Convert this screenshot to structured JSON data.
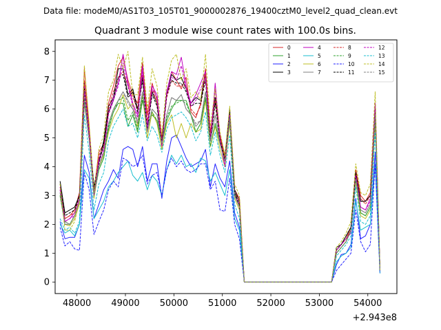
{
  "chart_data": {
    "type": "line",
    "suptitle": "Data file: modeM0/AS1T03_105T01_9000002876_19400cztM0_level2_quad_clean.evt",
    "title": "Quadrant 3 module wise count rates with 100.0s bins.",
    "xlabel": "",
    "ylabel": "",
    "x_offset_label": "+2.943e8",
    "xlim": [
      47550,
      54600
    ],
    "ylim": [
      -0.4,
      8.4
    ],
    "xticks": [
      48000,
      49000,
      50000,
      51000,
      52000,
      53000,
      54000
    ],
    "yticks": [
      0,
      1,
      2,
      3,
      4,
      5,
      6,
      7,
      8
    ],
    "legend_position": "top-right",
    "legend_columns": 4,
    "x": [
      47652,
      47752,
      47852,
      47952,
      48052,
      48152,
      48252,
      48352,
      48452,
      48552,
      48652,
      48752,
      48852,
      48952,
      49052,
      49152,
      49252,
      49352,
      49452,
      49552,
      49652,
      49752,
      49852,
      49952,
      50052,
      50152,
      50252,
      50352,
      50452,
      50552,
      50652,
      50752,
      50852,
      50952,
      51052,
      51152,
      51252,
      51352,
      51452,
      51552,
      51652,
      51752,
      51852,
      51952,
      52052,
      52152,
      52252,
      52352,
      52452,
      52552,
      52652,
      52752,
      52852,
      52952,
      53052,
      53152,
      53252,
      53352,
      53452,
      53552,
      53652,
      53752,
      53852,
      53952,
      54052,
      54152,
      54252
    ],
    "series": [
      {
        "name": "0",
        "color": "#d62728",
        "dash": "solid",
        "values": [
          3.3,
          2.2,
          2.3,
          2.5,
          3.1,
          7.4,
          5.4,
          3.2,
          4.5,
          4.8,
          6.2,
          6.8,
          7.5,
          7.8,
          7.0,
          6.5,
          6.2,
          7.6,
          5.8,
          6.9,
          6.3,
          5.0,
          6.5,
          7.3,
          7.0,
          6.7,
          7.1,
          5.9,
          5.7,
          6.2,
          7.4,
          5.2,
          6.4,
          5.1,
          4.4,
          5.9,
          3.2,
          2.9,
          0.0,
          0.0,
          0.0,
          0.0,
          0.0,
          0.0,
          0.0,
          0.0,
          0.0,
          0.0,
          0.0,
          0.0,
          0.0,
          0.0,
          0.0,
          0.0,
          0.0,
          0.0,
          0.0,
          1.1,
          1.3,
          1.5,
          1.9,
          3.9,
          3.0,
          2.8,
          3.1,
          6.1,
          0.4
        ]
      },
      {
        "name": "1",
        "color": "#2ca02c",
        "dash": "solid",
        "values": [
          3.0,
          2.1,
          2.0,
          2.3,
          2.8,
          6.2,
          5.1,
          3.0,
          3.9,
          4.3,
          5.3,
          5.9,
          6.2,
          6.2,
          5.4,
          5.8,
          5.2,
          6.3,
          5.5,
          5.8,
          5.6,
          4.8,
          5.6,
          6.0,
          6.3,
          6.3,
          6.3,
          5.8,
          5.2,
          5.5,
          6.4,
          4.7,
          5.5,
          4.8,
          4.2,
          5.6,
          3.1,
          2.6,
          0.0,
          0.0,
          0.0,
          0.0,
          0.0,
          0.0,
          0.0,
          0.0,
          0.0,
          0.0,
          0.0,
          0.0,
          0.0,
          0.0,
          0.0,
          0.0,
          0.0,
          0.0,
          0.0,
          1.0,
          1.2,
          1.4,
          1.8,
          3.6,
          2.4,
          2.3,
          2.6,
          5.7,
          0.4
        ]
      },
      {
        "name": "2",
        "color": "#1f1fff",
        "dash": "solid",
        "values": [
          2.1,
          1.5,
          1.55,
          1.55,
          2.0,
          4.4,
          3.8,
          2.2,
          2.7,
          3.2,
          3.5,
          3.9,
          3.6,
          4.6,
          4.7,
          4.6,
          4.0,
          4.7,
          3.5,
          4.1,
          4.1,
          2.9,
          4.2,
          5.0,
          5.1,
          4.7,
          4.3,
          4.0,
          4.1,
          4.2,
          4.6,
          3.3,
          4.1,
          3.6,
          3.3,
          4.2,
          2.4,
          1.9,
          0.0,
          0.0,
          0.0,
          0.0,
          0.0,
          0.0,
          0.0,
          0.0,
          0.0,
          0.0,
          0.0,
          0.0,
          0.0,
          0.0,
          0.0,
          0.0,
          0.0,
          0.0,
          0.0,
          0.6,
          0.95,
          1.0,
          1.3,
          2.9,
          1.5,
          1.6,
          2.0,
          4.5,
          0.3
        ]
      },
      {
        "name": "3",
        "color": "#000000",
        "dash": "solid",
        "values": [
          3.5,
          2.4,
          2.5,
          2.6,
          3.0,
          6.9,
          5.2,
          3.3,
          4.2,
          4.9,
          6.1,
          6.4,
          7.4,
          7.4,
          6.5,
          6.7,
          6.0,
          7.1,
          5.4,
          6.6,
          6.2,
          4.8,
          6.6,
          7.2,
          7.0,
          7.1,
          6.7,
          6.2,
          6.4,
          6.3,
          7.2,
          5.0,
          6.4,
          5.0,
          4.3,
          6.0,
          3.2,
          2.8,
          0.0,
          0.0,
          0.0,
          0.0,
          0.0,
          0.0,
          0.0,
          0.0,
          0.0,
          0.0,
          0.0,
          0.0,
          0.0,
          0.0,
          0.0,
          0.0,
          0.0,
          0.0,
          0.0,
          1.2,
          1.3,
          1.6,
          1.9,
          3.8,
          2.8,
          2.8,
          3.0,
          6.0,
          0.4
        ]
      },
      {
        "name": "4",
        "color": "#bf00bf",
        "dash": "solid",
        "values": [
          3.3,
          2.1,
          2.2,
          2.4,
          2.9,
          6.8,
          5.2,
          3.1,
          4.3,
          4.6,
          5.9,
          6.4,
          6.9,
          7.9,
          6.9,
          6.2,
          5.8,
          7.5,
          5.4,
          6.8,
          6.5,
          4.7,
          6.6,
          7.3,
          7.2,
          7.8,
          6.8,
          6.2,
          6.5,
          6.9,
          7.3,
          4.9,
          6.9,
          5.0,
          4.0,
          5.9,
          3.0,
          2.7,
          0.0,
          0.0,
          0.0,
          0.0,
          0.0,
          0.0,
          0.0,
          0.0,
          0.0,
          0.0,
          0.0,
          0.0,
          0.0,
          0.0,
          0.0,
          0.0,
          0.0,
          0.0,
          0.0,
          1.1,
          1.3,
          1.5,
          1.7,
          3.7,
          2.6,
          2.5,
          2.9,
          6.2,
          0.4
        ]
      },
      {
        "name": "5",
        "color": "#17becf",
        "dash": "solid",
        "values": [
          2.0,
          1.7,
          1.8,
          1.6,
          2.0,
          3.9,
          3.6,
          2.2,
          2.5,
          2.8,
          3.3,
          3.5,
          3.8,
          4.0,
          4.2,
          3.7,
          3.5,
          3.8,
          3.2,
          3.7,
          3.5,
          3.0,
          3.9,
          4.4,
          4.1,
          4.4,
          4.0,
          4.1,
          3.8,
          4.3,
          4.2,
          3.5,
          3.8,
          3.4,
          3.0,
          3.9,
          2.2,
          1.8,
          0.0,
          0.0,
          0.0,
          0.0,
          0.0,
          0.0,
          0.0,
          0.0,
          0.0,
          0.0,
          0.0,
          0.0,
          0.0,
          0.0,
          0.0,
          0.0,
          0.0,
          0.0,
          0.0,
          0.7,
          0.9,
          1.0,
          1.2,
          2.8,
          1.8,
          1.9,
          2.0,
          4.1,
          0.3
        ]
      },
      {
        "name": "6",
        "color": "#bcbd22",
        "dash": "solid",
        "values": [
          3.0,
          2.0,
          1.95,
          2.2,
          2.7,
          6.7,
          5.0,
          2.9,
          4.0,
          4.4,
          5.2,
          5.7,
          6.0,
          6.5,
          6.0,
          6.2,
          5.4,
          6.5,
          5.0,
          5.9,
          5.5,
          4.6,
          5.5,
          5.8,
          5.0,
          5.5,
          5.0,
          5.5,
          5.2,
          5.3,
          6.3,
          4.7,
          5.4,
          4.6,
          4.0,
          5.5,
          2.9,
          2.5,
          0.0,
          0.0,
          0.0,
          0.0,
          0.0,
          0.0,
          0.0,
          0.0,
          0.0,
          0.0,
          0.0,
          0.0,
          0.0,
          0.0,
          0.0,
          0.0,
          0.0,
          0.0,
          0.0,
          1.0,
          1.2,
          1.4,
          1.8,
          3.5,
          2.3,
          2.2,
          2.5,
          5.5,
          0.4
        ]
      },
      {
        "name": "7",
        "color": "#7f7f7f",
        "dash": "solid",
        "values": [
          3.1,
          2.1,
          2.0,
          2.3,
          2.8,
          6.3,
          5.0,
          3.0,
          4.0,
          4.5,
          5.5,
          6.0,
          6.3,
          6.6,
          6.3,
          6.0,
          5.5,
          6.6,
          5.2,
          6.0,
          5.8,
          4.8,
          5.8,
          6.4,
          6.3,
          6.5,
          6.0,
          5.8,
          5.4,
          5.6,
          6.6,
          4.9,
          5.8,
          4.8,
          4.2,
          5.7,
          3.0,
          2.6,
          0.0,
          0.0,
          0.0,
          0.0,
          0.0,
          0.0,
          0.0,
          0.0,
          0.0,
          0.0,
          0.0,
          0.0,
          0.0,
          0.0,
          0.0,
          0.0,
          0.0,
          0.0,
          0.0,
          1.0,
          1.2,
          1.4,
          1.8,
          3.6,
          2.5,
          2.4,
          2.7,
          5.8,
          0.4
        ]
      },
      {
        "name": "8",
        "color": "#d62728",
        "dash": "dashed",
        "values": [
          3.2,
          2.2,
          2.3,
          2.4,
          3.0,
          7.0,
          5.3,
          3.1,
          4.4,
          4.7,
          6.0,
          6.6,
          7.1,
          7.3,
          6.8,
          6.4,
          6.0,
          7.2,
          5.6,
          6.7,
          6.2,
          4.9,
          6.4,
          7.0,
          6.8,
          6.8,
          6.8,
          6.0,
          5.8,
          6.1,
          7.2,
          5.1,
          6.3,
          5.0,
          4.3,
          5.8,
          3.1,
          2.8,
          0.0,
          0.0,
          0.0,
          0.0,
          0.0,
          0.0,
          0.0,
          0.0,
          0.0,
          0.0,
          0.0,
          0.0,
          0.0,
          0.0,
          0.0,
          0.0,
          0.0,
          0.0,
          0.0,
          1.1,
          1.3,
          1.5,
          1.8,
          3.8,
          2.9,
          2.7,
          3.0,
          6.0,
          0.4
        ]
      },
      {
        "name": "9",
        "color": "#2ca02c",
        "dash": "dashed",
        "values": [
          3.0,
          2.0,
          2.0,
          2.3,
          2.8,
          6.4,
          5.0,
          3.0,
          3.9,
          4.3,
          5.4,
          5.9,
          6.3,
          6.4,
          5.6,
          5.9,
          5.3,
          6.4,
          5.4,
          5.9,
          5.6,
          4.8,
          5.7,
          6.1,
          6.2,
          6.3,
          6.2,
          5.8,
          5.2,
          5.5,
          6.4,
          4.7,
          5.5,
          4.8,
          4.2,
          5.6,
          3.0,
          2.6,
          0.0,
          0.0,
          0.0,
          0.0,
          0.0,
          0.0,
          0.0,
          0.0,
          0.0,
          0.0,
          0.0,
          0.0,
          0.0,
          0.0,
          0.0,
          0.0,
          0.0,
          0.0,
          0.0,
          1.0,
          1.2,
          1.4,
          1.8,
          3.6,
          2.4,
          2.3,
          2.6,
          5.7,
          0.4
        ]
      },
      {
        "name": "10",
        "color": "#1f1fff",
        "dash": "dashed",
        "values": [
          1.9,
          1.25,
          1.4,
          1.15,
          1.1,
          3.8,
          3.2,
          1.65,
          2.1,
          2.5,
          3.2,
          3.5,
          3.3,
          4.3,
          4.2,
          4.0,
          4.1,
          4.4,
          3.4,
          3.7,
          3.8,
          3.0,
          3.9,
          4.3,
          4.0,
          4.2,
          3.9,
          3.8,
          3.9,
          4.1,
          4.1,
          3.2,
          3.5,
          2.5,
          2.45,
          3.6,
          2.0,
          1.5,
          0.0,
          0.0,
          0.0,
          0.0,
          0.0,
          0.0,
          0.0,
          0.0,
          0.0,
          0.0,
          0.0,
          0.0,
          0.0,
          0.0,
          0.0,
          0.0,
          0.0,
          0.0,
          0.0,
          0.4,
          0.6,
          0.8,
          1.0,
          2.5,
          1.4,
          1.05,
          1.3,
          4.1,
          0.3
        ]
      },
      {
        "name": "11",
        "color": "#000000",
        "dash": "dashed",
        "values": [
          3.4,
          2.3,
          2.4,
          2.5,
          3.0,
          6.7,
          5.1,
          3.2,
          4.1,
          4.8,
          5.9,
          6.3,
          7.1,
          7.2,
          6.4,
          6.6,
          5.9,
          7.0,
          5.3,
          6.5,
          6.1,
          4.8,
          6.5,
          7.0,
          6.9,
          6.9,
          6.6,
          6.1,
          6.2,
          6.2,
          7.0,
          4.9,
          6.2,
          4.9,
          4.2,
          5.9,
          3.1,
          2.7,
          0.0,
          0.0,
          0.0,
          0.0,
          0.0,
          0.0,
          0.0,
          0.0,
          0.0,
          0.0,
          0.0,
          0.0,
          0.0,
          0.0,
          0.0,
          0.0,
          0.0,
          0.0,
          0.0,
          1.1,
          1.3,
          1.6,
          1.9,
          3.8,
          2.8,
          2.8,
          3.0,
          6.0,
          0.4
        ]
      },
      {
        "name": "12",
        "color": "#bf00bf",
        "dash": "dashed",
        "values": [
          3.2,
          2.1,
          2.2,
          2.3,
          2.8,
          6.6,
          5.1,
          3.0,
          4.2,
          4.5,
          5.8,
          6.3,
          6.8,
          7.6,
          6.8,
          6.1,
          5.7,
          7.3,
          5.3,
          6.7,
          6.4,
          4.7,
          6.5,
          7.1,
          7.0,
          7.5,
          6.7,
          6.1,
          6.3,
          6.7,
          7.1,
          4.9,
          6.7,
          4.9,
          4.0,
          5.8,
          3.0,
          2.6,
          0.0,
          0.0,
          0.0,
          0.0,
          0.0,
          0.0,
          0.0,
          0.0,
          0.0,
          0.0,
          0.0,
          0.0,
          0.0,
          0.0,
          0.0,
          0.0,
          0.0,
          0.0,
          0.0,
          1.1,
          1.3,
          1.5,
          1.7,
          3.7,
          2.6,
          2.5,
          2.8,
          6.1,
          0.4
        ]
      },
      {
        "name": "13",
        "color": "#17becf",
        "dash": "dashed",
        "values": [
          2.2,
          1.8,
          1.9,
          1.7,
          2.1,
          5.8,
          4.5,
          2.5,
          3.4,
          3.8,
          4.9,
          5.4,
          5.7,
          6.0,
          5.4,
          5.5,
          5.0,
          5.8,
          4.9,
          5.4,
          5.1,
          4.5,
          5.3,
          5.7,
          5.8,
          5.9,
          5.7,
          5.4,
          4.9,
          5.2,
          5.9,
          4.4,
          5.2,
          4.4,
          3.8,
          5.1,
          2.7,
          2.2,
          0.0,
          0.0,
          0.0,
          0.0,
          0.0,
          0.0,
          0.0,
          0.0,
          0.0,
          0.0,
          0.0,
          0.0,
          0.0,
          0.0,
          0.0,
          0.0,
          0.0,
          0.0,
          0.0,
          0.9,
          1.1,
          1.3,
          1.6,
          3.3,
          2.1,
          2.0,
          2.3,
          5.2,
          0.35
        ]
      },
      {
        "name": "14",
        "color": "#bcbd22",
        "dash": "dashed",
        "values": [
          3.4,
          1.8,
          1.8,
          2.1,
          2.8,
          7.5,
          5.5,
          3.1,
          4.6,
          5.1,
          6.6,
          7.0,
          7.9,
          7.4,
          8.0,
          6.5,
          6.5,
          7.8,
          6.0,
          7.4,
          6.8,
          5.1,
          6.9,
          7.7,
          7.9,
          7.0,
          7.4,
          6.4,
          6.6,
          6.3,
          7.9,
          5.4,
          6.7,
          5.2,
          4.4,
          6.1,
          3.4,
          3.0,
          0.0,
          0.0,
          0.0,
          0.0,
          0.0,
          0.0,
          0.0,
          0.0,
          0.0,
          0.0,
          0.0,
          0.0,
          0.0,
          0.0,
          0.0,
          0.0,
          0.0,
          0.0,
          0.0,
          1.2,
          1.4,
          1.7,
          2.1,
          4.1,
          3.1,
          3.0,
          3.4,
          6.6,
          0.4
        ]
      },
      {
        "name": "15",
        "color": "#7f7f7f",
        "dash": "dashed",
        "values": [
          3.1,
          2.0,
          2.0,
          2.3,
          2.8,
          6.2,
          4.9,
          3.0,
          4.0,
          4.5,
          5.5,
          6.0,
          6.3,
          6.6,
          6.2,
          6.0,
          5.6,
          6.6,
          5.2,
          6.0,
          5.8,
          4.8,
          5.8,
          6.4,
          6.3,
          6.5,
          6.0,
          5.8,
          5.5,
          5.6,
          6.6,
          4.9,
          5.8,
          4.8,
          4.2,
          5.7,
          3.0,
          2.6,
          0.0,
          0.0,
          0.0,
          0.0,
          0.0,
          0.0,
          0.0,
          0.0,
          0.0,
          0.0,
          0.0,
          0.0,
          0.0,
          0.0,
          0.0,
          0.0,
          0.0,
          0.0,
          0.0,
          1.0,
          1.2,
          1.4,
          1.8,
          3.6,
          2.5,
          2.4,
          2.7,
          5.8,
          0.4
        ]
      }
    ]
  }
}
